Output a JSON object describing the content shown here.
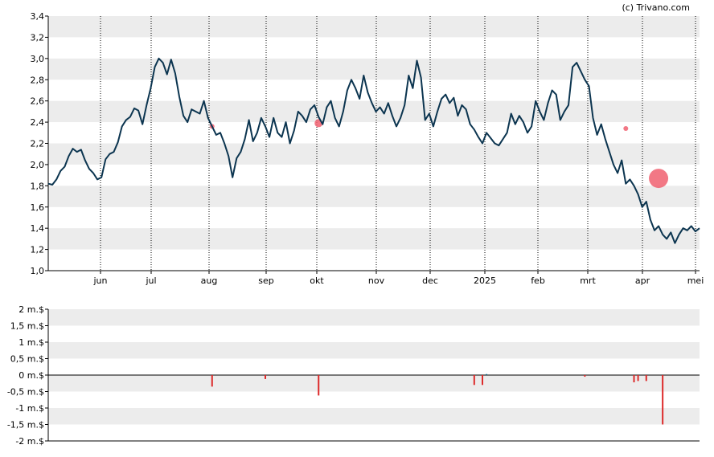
{
  "credit": "(c) Trivano.com",
  "colors": {
    "line": "#0c3550",
    "marker": "#f06070",
    "volume_neg": "#dd2a2a",
    "volume_pos": "#1a6b8a",
    "band": "#ececec",
    "grid": "#000000"
  },
  "chart_data": [
    {
      "type": "line",
      "ylim": [
        1.0,
        3.4
      ],
      "yticks": [
        "1,0",
        "1,2",
        "1,4",
        "1,6",
        "1,8",
        "2,0",
        "2,2",
        "2,4",
        "2,6",
        "2,8",
        "3,0",
        "3,2",
        "3,4"
      ],
      "xlabels": [
        "jun",
        "jul",
        "aug",
        "sep",
        "okt",
        "nov",
        "dec",
        "2025",
        "feb",
        "mrt",
        "apr",
        "mei"
      ],
      "series": [
        {
          "values": [
            1.82,
            1.81,
            1.86,
            1.94,
            1.98,
            2.08,
            2.15,
            2.12,
            2.14,
            2.04,
            1.96,
            1.92,
            1.86,
            1.88,
            2.05,
            2.1,
            2.12,
            2.21,
            2.36,
            2.42,
            2.45,
            2.53,
            2.51,
            2.38,
            2.56,
            2.72,
            2.92,
            3.0,
            2.96,
            2.85,
            2.99,
            2.86,
            2.64,
            2.46,
            2.4,
            2.52,
            2.5,
            2.48,
            2.6,
            2.44,
            2.36,
            2.28,
            2.3,
            2.2,
            2.08,
            1.88,
            2.06,
            2.12,
            2.24,
            2.42,
            2.22,
            2.3,
            2.44,
            2.36,
            2.26,
            2.44,
            2.3,
            2.26,
            2.4,
            2.2,
            2.32,
            2.5,
            2.46,
            2.4,
            2.52,
            2.56,
            2.45,
            2.38,
            2.54,
            2.6,
            2.44,
            2.36,
            2.5,
            2.7,
            2.8,
            2.72,
            2.62,
            2.84,
            2.68,
            2.58,
            2.5,
            2.54,
            2.48,
            2.58,
            2.46,
            2.36,
            2.44,
            2.56,
            2.84,
            2.72,
            2.98,
            2.82,
            2.42,
            2.48,
            2.36,
            2.5,
            2.62,
            2.66,
            2.58,
            2.63,
            2.46,
            2.56,
            2.52,
            2.38,
            2.33,
            2.26,
            2.2,
            2.3,
            2.25,
            2.2,
            2.18,
            2.24,
            2.3,
            2.48,
            2.38,
            2.46,
            2.4,
            2.3,
            2.36,
            2.6,
            2.5,
            2.42,
            2.58,
            2.7,
            2.66,
            2.42,
            2.5,
            2.56,
            2.92,
            2.96,
            2.88,
            2.8,
            2.74,
            2.44,
            2.28,
            2.38,
            2.24,
            2.12,
            2.0,
            1.92,
            2.04,
            1.82,
            1.86,
            1.8,
            1.72,
            1.6,
            1.65,
            1.48,
            1.38,
            1.42,
            1.34,
            1.3,
            1.36,
            1.26,
            1.34,
            1.4,
            1.38,
            1.42,
            1.37,
            1.4
          ]
        }
      ],
      "markers": [
        {
          "x_index": 40,
          "y": 2.36,
          "size": "small"
        },
        {
          "x_index": 66,
          "y": 2.39,
          "size": "medium"
        },
        {
          "x_index": 141,
          "y": 2.34,
          "size": "small"
        },
        {
          "x_index": 149,
          "y": 1.87,
          "size": "large"
        }
      ],
      "grid": "horizontal bands, dotted vertical month lines"
    },
    {
      "type": "bar",
      "ylim": [
        -2,
        2
      ],
      "yticks": [
        "-2 m.$",
        "-1,5 m.$",
        "-1 m.$",
        "-0,5 m.$",
        "0 m.$",
        "0,5 m.$",
        "1 m.$",
        "1,5 m.$",
        "2 m.$"
      ],
      "bars": [
        {
          "x_index": 40,
          "value": -0.35
        },
        {
          "x_index": 53,
          "value": -0.12
        },
        {
          "x_index": 66,
          "value": -0.62
        },
        {
          "x_index": 104,
          "value": -0.3
        },
        {
          "x_index": 106,
          "value": -0.3
        },
        {
          "x_index": 107,
          "value": 0.03
        },
        {
          "x_index": 131,
          "value": -0.05
        },
        {
          "x_index": 143,
          "value": -0.22
        },
        {
          "x_index": 144,
          "value": -0.18
        },
        {
          "x_index": 146,
          "value": -0.18
        },
        {
          "x_index": 150,
          "value": -1.5
        }
      ]
    }
  ]
}
